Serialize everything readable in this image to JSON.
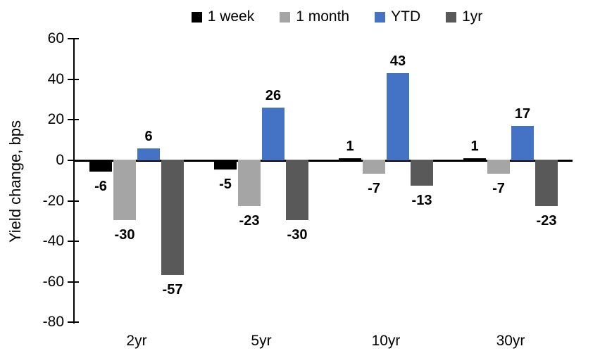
{
  "chart_data": {
    "type": "bar",
    "title": "",
    "ylabel": "Yield change, bps",
    "xlabel": "",
    "categories": [
      "2yr",
      "5yr",
      "10yr",
      "30yr"
    ],
    "series": [
      {
        "name": "1 week",
        "color": "#000000",
        "values": [
          -6,
          -5,
          1,
          1
        ]
      },
      {
        "name": "1 month",
        "color": "#a5a5a5",
        "values": [
          -30,
          -23,
          -7,
          -7
        ]
      },
      {
        "name": "YTD",
        "color": "#4472c4",
        "values": [
          6,
          26,
          43,
          17
        ]
      },
      {
        "name": "1yr",
        "color": "#595959",
        "values": [
          -57,
          -30,
          -13,
          -23
        ]
      }
    ],
    "ylim": [
      -80,
      60
    ],
    "ytick_step": 20,
    "ytick_labels": [
      "60",
      "40",
      "20",
      "0",
      "-20",
      "-40",
      "-60",
      "-80"
    ],
    "grid": false,
    "legend_position": "top",
    "data_labels": true,
    "axis_color": "#000000",
    "background_color": "#ffffff"
  }
}
